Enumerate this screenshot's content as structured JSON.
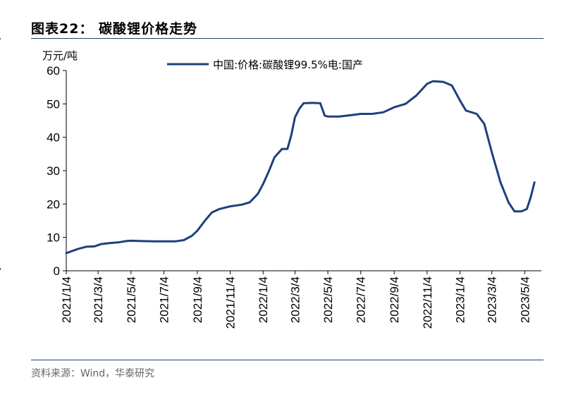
{
  "figure": {
    "title": "图表22：  碳酸锂价格走势",
    "source": "资料来源：Wind，华泰研究"
  },
  "chart_data": {
    "type": "line",
    "title": "",
    "ylabel": "万元/吨",
    "xlabel": "",
    "ylim": [
      0,
      60
    ],
    "yticks": [
      0,
      10,
      20,
      30,
      40,
      50,
      60
    ],
    "x_ticks": [
      "2021/1/4",
      "2021/3/4",
      "2021/5/4",
      "2021/7/4",
      "2021/9/4",
      "2021/11/4",
      "2022/1/4",
      "2022/3/4",
      "2022/5/4",
      "2022/7/4",
      "2022/9/4",
      "2022/11/4",
      "2023/1/4",
      "2023/3/4",
      "2023/5/4"
    ],
    "legend_position": "top",
    "grid": false,
    "series": [
      {
        "name": "中国:价格:碳酸锂99.5%电:国产",
        "color": "#1f3f7f",
        "points": [
          [
            "2021/1/4",
            5.3
          ],
          [
            "2021/1/25",
            6.5
          ],
          [
            "2021/2/10",
            7.2
          ],
          [
            "2021/2/25",
            7.3
          ],
          [
            "2021/3/10",
            8.0
          ],
          [
            "2021/3/25",
            8.3
          ],
          [
            "2021/4/10",
            8.5
          ],
          [
            "2021/4/25",
            8.9
          ],
          [
            "2021/5/4",
            9.0
          ],
          [
            "2021/5/25",
            8.9
          ],
          [
            "2021/6/15",
            8.8
          ],
          [
            "2021/7/4",
            8.8
          ],
          [
            "2021/7/25",
            8.8
          ],
          [
            "2021/8/10",
            9.2
          ],
          [
            "2021/8/25",
            10.5
          ],
          [
            "2021/9/4",
            12.0
          ],
          [
            "2021/9/18",
            15.0
          ],
          [
            "2021/10/1",
            17.5
          ],
          [
            "2021/10/15",
            18.5
          ],
          [
            "2021/11/4",
            19.3
          ],
          [
            "2021/11/25",
            19.8
          ],
          [
            "2021/12/10",
            20.5
          ],
          [
            "2021/12/25",
            23.0
          ],
          [
            "2022/1/4",
            26.0
          ],
          [
            "2022/1/15",
            30.0
          ],
          [
            "2022/1/25",
            34.0
          ],
          [
            "2022/2/8",
            36.5
          ],
          [
            "2022/2/18",
            36.5
          ],
          [
            "2022/2/25",
            40.5
          ],
          [
            "2022/3/4",
            46.0
          ],
          [
            "2022/3/12",
            48.5
          ],
          [
            "2022/3/20",
            50.2
          ],
          [
            "2022/4/5",
            50.3
          ],
          [
            "2022/4/20",
            50.2
          ],
          [
            "2022/4/28",
            46.5
          ],
          [
            "2022/5/4",
            46.2
          ],
          [
            "2022/5/25",
            46.2
          ],
          [
            "2022/6/15",
            46.6
          ],
          [
            "2022/7/4",
            47.0
          ],
          [
            "2022/7/25",
            47.0
          ],
          [
            "2022/8/15",
            47.5
          ],
          [
            "2022/9/4",
            49.0
          ],
          [
            "2022/9/25",
            50.0
          ],
          [
            "2022/10/15",
            52.5
          ],
          [
            "2022/11/4",
            56.0
          ],
          [
            "2022/11/15",
            56.8
          ],
          [
            "2022/12/4",
            56.6
          ],
          [
            "2022/12/20",
            55.5
          ],
          [
            "2023/1/4",
            51.0
          ],
          [
            "2023/1/15",
            48.0
          ],
          [
            "2023/2/4",
            47.0
          ],
          [
            "2023/2/18",
            44.0
          ],
          [
            "2023/3/4",
            35.5
          ],
          [
            "2023/3/20",
            26.5
          ],
          [
            "2023/4/4",
            20.5
          ],
          [
            "2023/4/15",
            17.8
          ],
          [
            "2023/4/28",
            17.8
          ],
          [
            "2023/5/8",
            18.5
          ],
          [
            "2023/5/15",
            22.0
          ],
          [
            "2023/5/22",
            26.5
          ]
        ]
      }
    ]
  }
}
